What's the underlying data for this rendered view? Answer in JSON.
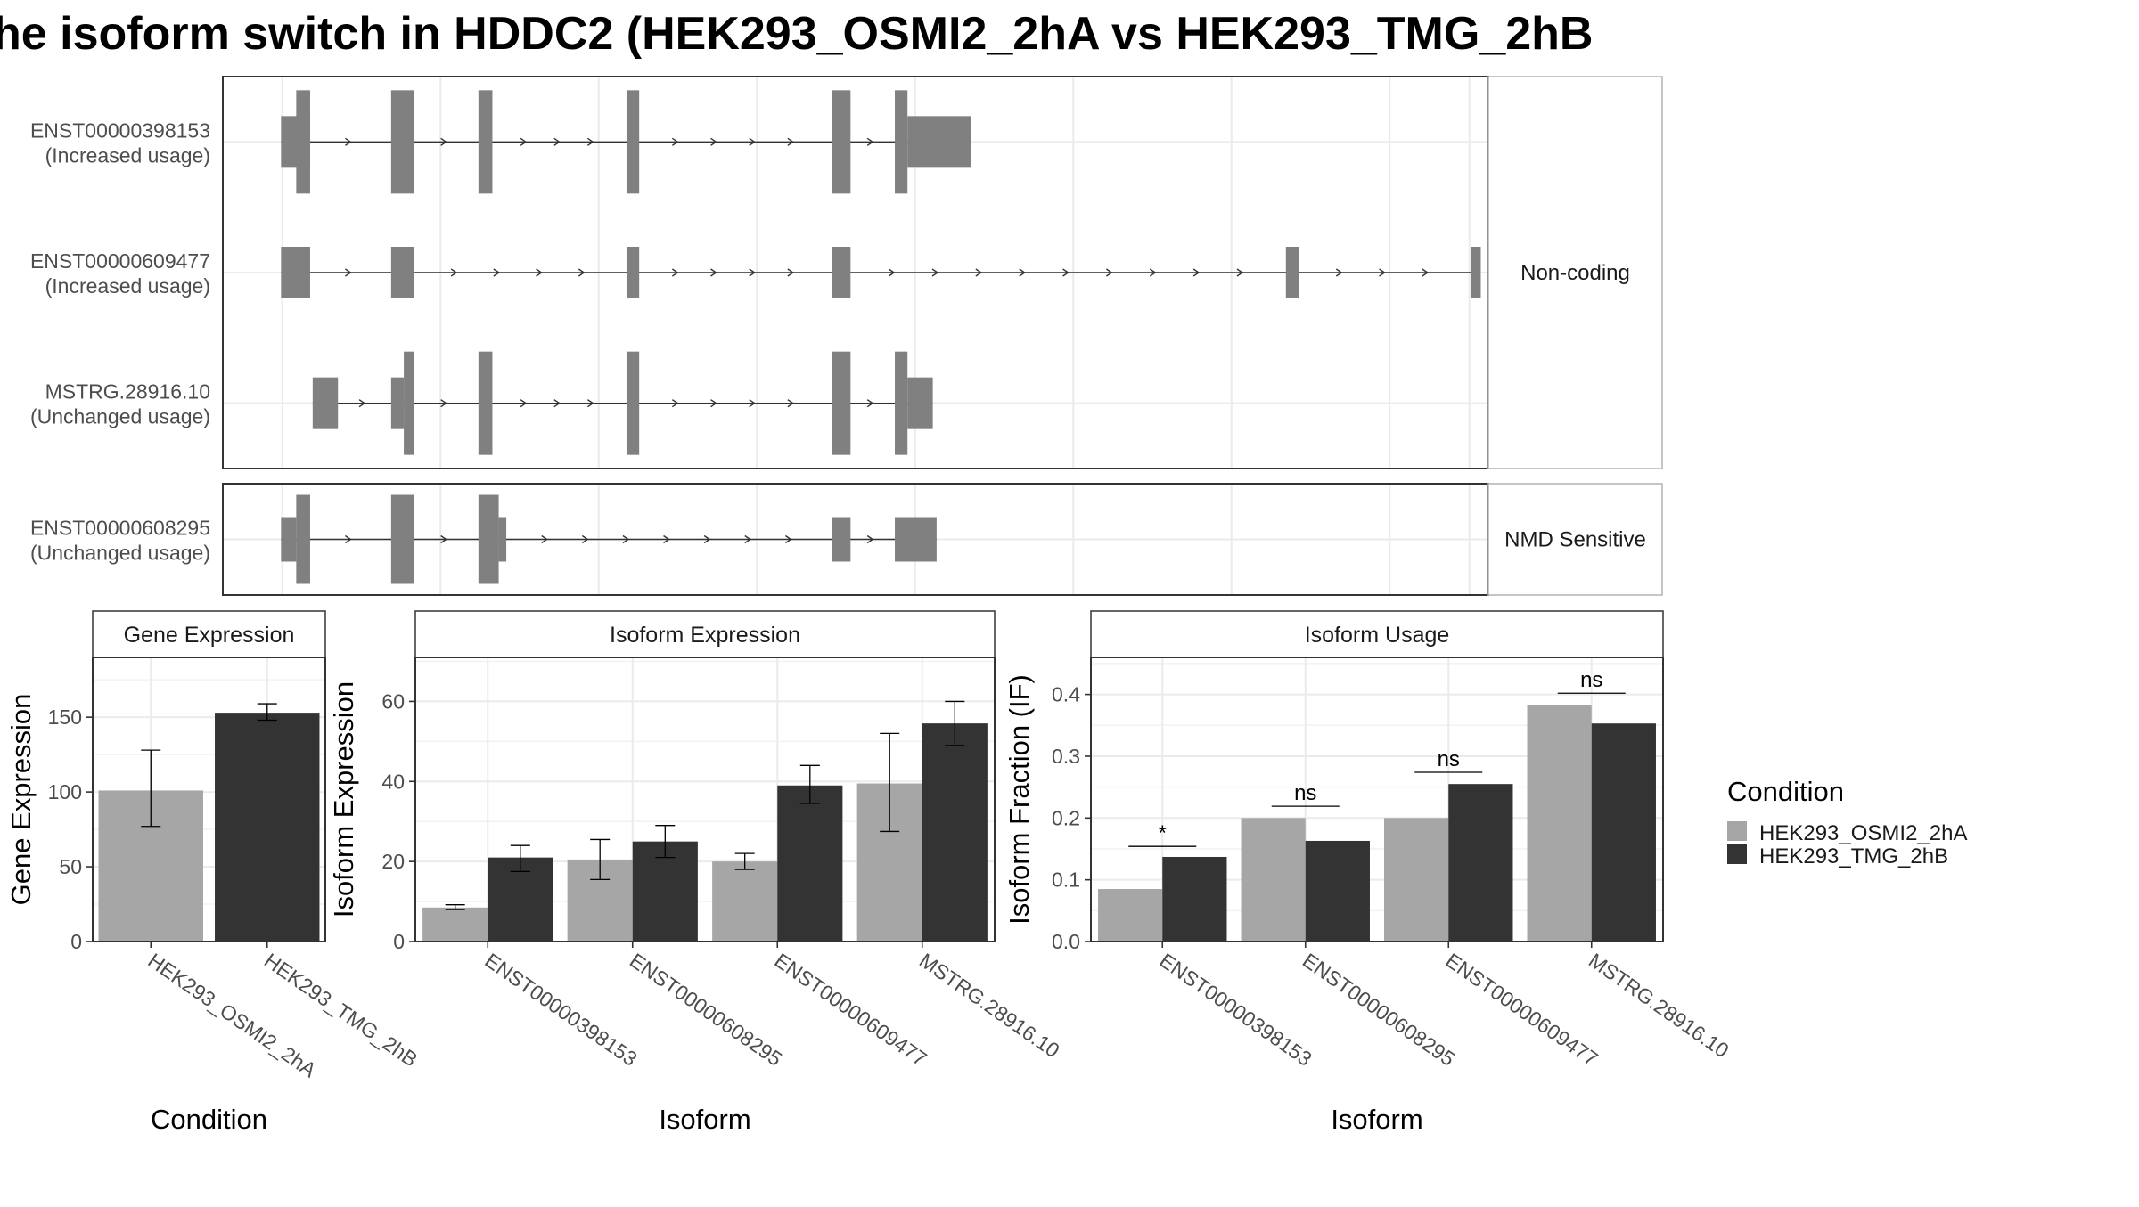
{
  "title": "he isoform switch in HDDC2 (HEK293_OSMI2_2hA vs HEK293_TMG_2hB",
  "colors": {
    "exon": "#808080",
    "cond_a": "#a6a6a6",
    "cond_b": "#333333",
    "grid": "#ebebeb",
    "panel_border": "#333333",
    "strip_border": "#b3b3b3"
  },
  "structure": {
    "xlim": [
      0,
      100
    ],
    "groups": [
      {
        "label": "Non-coding",
        "isoforms": [
          {
            "id": "ENST00000398153",
            "usage": "(Increased usage)",
            "exons": [
              {
                "s": 4.6,
                "e": 6.9,
                "tall": false
              },
              {
                "s": 5.8,
                "e": 6.9,
                "tall": true
              },
              {
                "s": 13.3,
                "e": 15.1,
                "tall": true
              },
              {
                "s": 20.2,
                "e": 21.3,
                "tall": true
              },
              {
                "s": 31.9,
                "e": 32.9,
                "tall": true
              },
              {
                "s": 48.1,
                "e": 49.6,
                "tall": true
              },
              {
                "s": 53.1,
                "e": 54.1,
                "tall": true
              },
              {
                "s": 54.1,
                "e": 59.1,
                "tall": false
              }
            ]
          },
          {
            "id": "ENST00000609477",
            "usage": "(Increased usage)",
            "exons": [
              {
                "s": 4.6,
                "e": 6.9,
                "tall": false
              },
              {
                "s": 13.3,
                "e": 15.1,
                "tall": false
              },
              {
                "s": 31.9,
                "e": 32.9,
                "tall": false
              },
              {
                "s": 48.1,
                "e": 49.6,
                "tall": false
              },
              {
                "s": 84.0,
                "e": 85.0,
                "tall": false
              },
              {
                "s": 98.6,
                "e": 99.4,
                "tall": false
              }
            ]
          },
          {
            "id": "MSTRG.28916.10",
            "usage": "(Unchanged usage)",
            "exons": [
              {
                "s": 7.1,
                "e": 9.1,
                "tall": false
              },
              {
                "s": 13.3,
                "e": 14.3,
                "tall": false
              },
              {
                "s": 14.3,
                "e": 15.1,
                "tall": true
              },
              {
                "s": 20.2,
                "e": 21.3,
                "tall": true
              },
              {
                "s": 31.9,
                "e": 32.9,
                "tall": true
              },
              {
                "s": 48.1,
                "e": 49.6,
                "tall": true
              },
              {
                "s": 53.1,
                "e": 54.1,
                "tall": true
              },
              {
                "s": 54.1,
                "e": 56.1,
                "tall": false
              }
            ]
          }
        ]
      },
      {
        "label": "NMD Sensitive",
        "isoforms": [
          {
            "id": "ENST00000608295",
            "usage": "(Unchanged usage)",
            "exons": [
              {
                "s": 4.6,
                "e": 5.8,
                "tall": false
              },
              {
                "s": 5.8,
                "e": 6.9,
                "tall": true
              },
              {
                "s": 13.3,
                "e": 15.1,
                "tall": true
              },
              {
                "s": 20.2,
                "e": 21.8,
                "tall": true
              },
              {
                "s": 21.8,
                "e": 22.4,
                "tall": false
              },
              {
                "s": 48.1,
                "e": 49.6,
                "tall": false
              },
              {
                "s": 53.1,
                "e": 56.4,
                "tall": false
              }
            ]
          }
        ]
      }
    ]
  },
  "legend": {
    "title": "Condition",
    "items": [
      {
        "label": "HEK293_OSMI2_2hA",
        "color": "#a6a6a6"
      },
      {
        "label": "HEK293_TMG_2hB",
        "color": "#333333"
      }
    ]
  },
  "chart_data": [
    {
      "type": "bar",
      "title": "Gene Expression",
      "xlabel": "Condition",
      "ylabel": "Gene Expression",
      "ylim": [
        0,
        190
      ],
      "yticks": [
        0,
        50,
        100,
        150
      ],
      "categories": [
        "HEK293_OSMI2_2hA",
        "HEK293_TMG_2hB"
      ],
      "values": [
        101,
        153
      ],
      "errors": [
        [
          77,
          128
        ],
        [
          148,
          159
        ]
      ],
      "colors": [
        "#a6a6a6",
        "#333333"
      ]
    },
    {
      "type": "bar",
      "title": "Isoform Expression",
      "xlabel": "Isoform",
      "ylabel": "Isoform Expression",
      "ylim": [
        0,
        71
      ],
      "yticks": [
        0,
        20,
        40,
        60
      ],
      "categories": [
        "ENST00000398153",
        "ENST00000608295",
        "ENST00000609477",
        "MSTRG.28916.10"
      ],
      "series": [
        {
          "name": "HEK293_OSMI2_2hA",
          "values": [
            8.5,
            20.5,
            20,
            39.5
          ],
          "errors": [
            [
              8,
              9.2
            ],
            [
              15.5,
              25.5
            ],
            [
              18,
              22
            ],
            [
              27.5,
              52
            ]
          ]
        },
        {
          "name": "HEK293_TMG_2hB",
          "values": [
            21,
            25,
            39,
            54.5
          ],
          "errors": [
            [
              17.5,
              24
            ],
            [
              21,
              29
            ],
            [
              34.5,
              44
            ],
            [
              49,
              60
            ]
          ]
        }
      ]
    },
    {
      "type": "bar",
      "title": "Isoform Usage",
      "xlabel": "Isoform",
      "ylabel": "Isoform Fraction (IF)",
      "ylim": [
        0,
        0.46
      ],
      "yticks": [
        0.0,
        0.1,
        0.2,
        0.3,
        0.4
      ],
      "categories": [
        "ENST00000398153",
        "ENST00000608295",
        "ENST00000609477",
        "MSTRG.28916.10"
      ],
      "series": [
        {
          "name": "HEK293_OSMI2_2hA",
          "values": [
            0.085,
            0.2,
            0.2,
            0.383
          ]
        },
        {
          "name": "HEK293_TMG_2hB",
          "values": [
            0.137,
            0.163,
            0.255,
            0.353
          ]
        }
      ],
      "significance": [
        {
          "label": "*",
          "y": 0.154
        },
        {
          "label": "ns",
          "y": 0.219
        },
        {
          "label": "ns",
          "y": 0.274
        },
        {
          "label": "ns",
          "y": 0.402
        }
      ]
    }
  ]
}
